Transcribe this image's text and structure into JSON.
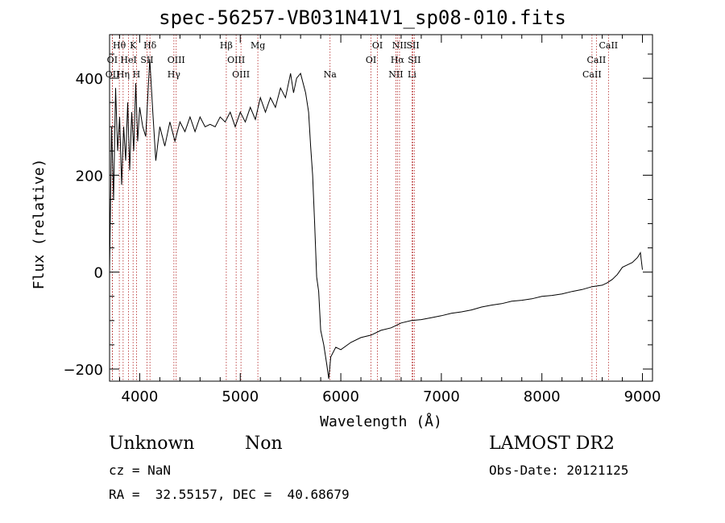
{
  "chart_data": {
    "type": "line",
    "title": "spec-56257-VB031N41V1_sp08-010.fits",
    "xlabel": "Wavelength (Å)",
    "ylabel": "Flux (relative)",
    "xlim": [
      3700,
      9100
    ],
    "ylim": [
      -225,
      490
    ],
    "x_ticks": [
      4000,
      5000,
      6000,
      7000,
      8000,
      9000
    ],
    "x_tick_labels": [
      "4000",
      "5000",
      "6000",
      "7000",
      "8000",
      "9000"
    ],
    "y_ticks": [
      -200,
      0,
      200,
      400
    ],
    "y_tick_labels": [
      "−200",
      "0",
      "200",
      "400"
    ],
    "grid": false,
    "line_color": "#000000",
    "marker_color": "#b22222",
    "spectrum": {
      "x": [
        3700,
        3720,
        3740,
        3760,
        3780,
        3800,
        3820,
        3840,
        3860,
        3880,
        3900,
        3920,
        3940,
        3960,
        3980,
        4000,
        4030,
        4060,
        4100,
        4130,
        4160,
        4200,
        4250,
        4300,
        4350,
        4400,
        4450,
        4500,
        4550,
        4600,
        4650,
        4700,
        4750,
        4800,
        4850,
        4900,
        4950,
        5000,
        5050,
        5100,
        5150,
        5200,
        5250,
        5300,
        5350,
        5400,
        5450,
        5500,
        5530,
        5560,
        5600,
        5650,
        5680,
        5700,
        5720,
        5740,
        5760,
        5780,
        5800,
        5830,
        5860,
        5880,
        5900,
        5950,
        6000,
        6100,
        6200,
        6300,
        6400,
        6500,
        6600,
        6700,
        6800,
        6900,
        7000,
        7100,
        7200,
        7300,
        7400,
        7500,
        7600,
        7700,
        7800,
        7900,
        8000,
        8100,
        8200,
        8300,
        8400,
        8500,
        8600,
        8650,
        8700,
        8750,
        8800,
        8850,
        8900,
        8950,
        8980,
        9000
      ],
      "y": [
        0,
        300,
        150,
        380,
        250,
        320,
        180,
        300,
        230,
        350,
        210,
        330,
        250,
        390,
        270,
        340,
        300,
        280,
        440,
        330,
        230,
        300,
        260,
        310,
        270,
        310,
        290,
        320,
        290,
        320,
        300,
        305,
        300,
        320,
        310,
        330,
        300,
        330,
        310,
        340,
        315,
        360,
        330,
        360,
        340,
        380,
        360,
        410,
        370,
        400,
        410,
        370,
        330,
        260,
        200,
        100,
        -10,
        -40,
        -120,
        -150,
        -190,
        -220,
        -175,
        -155,
        -160,
        -145,
        -135,
        -130,
        -120,
        -115,
        -105,
        -100,
        -98,
        -94,
        -90,
        -85,
        -82,
        -78,
        -72,
        -68,
        -65,
        -60,
        -58,
        -55,
        -50,
        -48,
        -45,
        -40,
        -36,
        -30,
        -27,
        -22,
        -15,
        -5,
        10,
        15,
        20,
        30,
        40,
        5
      ]
    },
    "lines": [
      {
        "name": "Hθ",
        "x": 3797,
        "row": 0
      },
      {
        "name": "K",
        "x": 3934,
        "row": 0
      },
      {
        "name": "Hδ",
        "x": 4102,
        "row": 0
      },
      {
        "name": "Hβ",
        "x": 4861,
        "row": 0
      },
      {
        "name": "Mg",
        "x": 5175,
        "row": 0
      },
      {
        "name": "OI",
        "x": 6364,
        "row": 0
      },
      {
        "name": "NII",
        "x": 6584,
        "row": 0
      },
      {
        "name": "SII",
        "x": 6717,
        "row": 0
      },
      {
        "name": "CaII",
        "x": 8662,
        "row": 0
      },
      {
        "name": "OI",
        "x": 3727,
        "row": 1
      },
      {
        "name": "HeI",
        "x": 3889,
        "row": 1
      },
      {
        "name": "SII",
        "x": 4072,
        "row": 1
      },
      {
        "name": "OIII",
        "x": 4363,
        "row": 1
      },
      {
        "name": "OIII",
        "x": 4959,
        "row": 1
      },
      {
        "name": "OI",
        "x": 6300,
        "row": 1
      },
      {
        "name": "Hα",
        "x": 6563,
        "row": 1
      },
      {
        "name": "SII",
        "x": 6731,
        "row": 1
      },
      {
        "name": "CaII",
        "x": 8542,
        "row": 1
      },
      {
        "name": "OII",
        "x": 3729,
        "row": 2
      },
      {
        "name": "Hη",
        "x": 3835,
        "row": 2
      },
      {
        "name": "H",
        "x": 3968,
        "row": 2
      },
      {
        "name": "Hγ",
        "x": 4340,
        "row": 2
      },
      {
        "name": "OIII",
        "x": 5007,
        "row": 2
      },
      {
        "name": "Na",
        "x": 5893,
        "row": 2
      },
      {
        "name": "NII",
        "x": 6548,
        "row": 2
      },
      {
        "name": "Li",
        "x": 6708,
        "row": 2
      },
      {
        "name": "CaII",
        "x": 8498,
        "row": 2
      }
    ]
  },
  "info": {
    "object_class": "Unknown",
    "object_subclass": "Non",
    "survey": "LAMOST DR2",
    "cz": "cz = NaN",
    "obs_date": "Obs-Date: 20121125",
    "coords": "RA =  32.55157, DEC =  40.68679"
  }
}
